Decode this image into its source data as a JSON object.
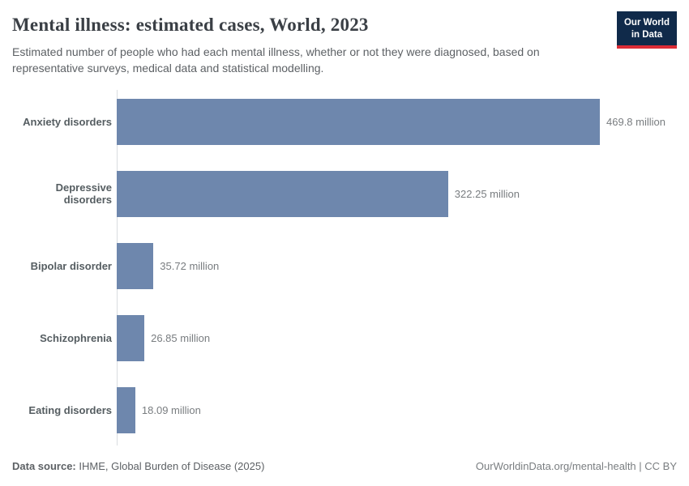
{
  "header": {
    "title": "Mental illness: estimated cases, World, 2023",
    "subtitle": "Estimated number of people who had each mental illness, whether or not they were diagnosed, based on representative surveys, medical data and statistical modelling.",
    "logo": {
      "line1": "Our World",
      "line2": "in Data"
    }
  },
  "chart_data": {
    "type": "bar",
    "orientation": "horizontal",
    "title": "Mental illness: estimated cases, World, 2023",
    "categories": [
      "Anxiety disorders",
      "Depressive disorders",
      "Bipolar disorder",
      "Schizophrenia",
      "Eating disorders"
    ],
    "values": [
      469.8,
      322.25,
      35.72,
      26.85,
      18.09
    ],
    "value_labels": [
      "469.8 million",
      "322.25 million",
      "35.72 million",
      "26.85 million",
      "18.09 million"
    ],
    "unit": "million",
    "xlim": [
      0,
      469.8
    ],
    "grid": false,
    "legend": false,
    "bar_color": "#6e87ad"
  },
  "footer": {
    "source_label": "Data source:",
    "source_text": " IHME, Global Burden of Disease (2025)",
    "link_text": "OurWorldinData.org/mental-health | CC BY"
  },
  "colors": {
    "bar": "#6e87ad",
    "axis_line": "#dadde0",
    "logo_navy": "#102a4a",
    "logo_red": "#dc2c36"
  }
}
